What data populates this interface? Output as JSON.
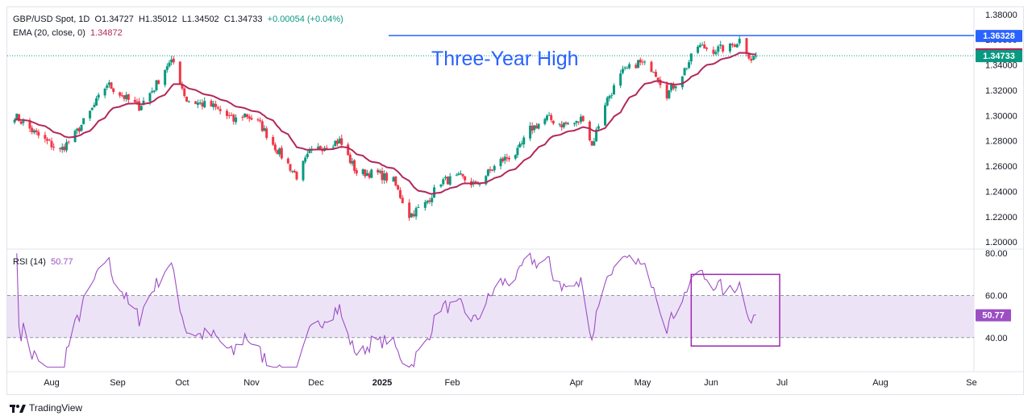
{
  "header": {
    "symbol": "GBP/USD Spot, 1D",
    "open": "O1.34727",
    "high": "H1.35012",
    "low": "L1.34502",
    "close": "C1.34733",
    "change": "+0.00054 (+0.04%)",
    "ema_label": "EMA (20, close, 0)",
    "ema_value": "1.34872"
  },
  "rsi": {
    "label": "RSI (14)",
    "value": "50.77"
  },
  "annotation": "Three-Year High",
  "footer": {
    "brand": "TradingView"
  },
  "colors": {
    "up": "#089981",
    "down": "#f23645",
    "ema": "#b2285a",
    "rsi": "#9c4fc4",
    "resistance": "#2962ff",
    "box": "#9c27b0",
    "band": "#ede3f7"
  },
  "chart_data": [
    {
      "type": "candlestick",
      "title": "GBP/USD Spot, 1D",
      "x": [
        "Jul",
        "Aug",
        "Sep",
        "Oct",
        "Nov",
        "Dec",
        "2025",
        "Feb",
        "Mar",
        "Apr",
        "May",
        "Jun",
        "Jul",
        "Aug",
        "Sep"
      ],
      "x_ticks": [
        "Aug",
        "Sep",
        "Oct",
        "Nov",
        "Dec",
        "2025",
        "Feb",
        "Apr",
        "May",
        "Jun",
        "Jul",
        "Aug",
        "Se"
      ],
      "y_ticks": [
        "1.38000",
        "1.36000",
        "1.34000",
        "1.32000",
        "1.30000",
        "1.28000",
        "1.26000",
        "1.24000",
        "1.22000",
        "1.20000"
      ],
      "ylim": [
        1.195,
        1.385
      ],
      "close_anchors": [
        [
          "2024-07-15",
          1.3
        ],
        [
          "2024-07-25",
          1.285
        ],
        [
          "2024-08-05",
          1.272
        ],
        [
          "2024-08-12",
          1.285
        ],
        [
          "2024-08-20",
          1.305
        ],
        [
          "2024-08-27",
          1.325
        ],
        [
          "2024-09-06",
          1.312
        ],
        [
          "2024-09-11",
          1.307
        ],
        [
          "2024-09-18",
          1.322
        ],
        [
          "2024-09-24",
          1.34
        ],
        [
          "2024-09-27",
          1.342
        ],
        [
          "2024-10-03",
          1.312
        ],
        [
          "2024-10-15",
          1.307
        ],
        [
          "2024-10-24",
          1.296
        ],
        [
          "2024-10-29",
          1.301
        ],
        [
          "2024-11-05",
          1.293
        ],
        [
          "2024-11-12",
          1.275
        ],
        [
          "2024-11-22",
          1.252
        ],
        [
          "2024-11-28",
          1.27
        ],
        [
          "2024-12-06",
          1.277
        ],
        [
          "2024-12-12",
          1.28
        ],
        [
          "2024-12-20",
          1.255
        ],
        [
          "2024-12-30",
          1.254
        ],
        [
          "2025-01-06",
          1.248
        ],
        [
          "2025-01-13",
          1.221
        ],
        [
          "2025-01-20",
          1.23
        ],
        [
          "2025-01-27",
          1.248
        ],
        [
          "2025-02-05",
          1.251
        ],
        [
          "2025-02-12",
          1.245
        ],
        [
          "2025-02-24",
          1.264
        ],
        [
          "2025-03-04",
          1.271
        ],
        [
          "2025-03-10",
          1.289
        ],
        [
          "2025-03-18",
          1.298
        ],
        [
          "2025-03-25",
          1.293
        ],
        [
          "2025-04-01",
          1.294
        ],
        [
          "2025-04-04",
          1.299
        ],
        [
          "2025-04-08",
          1.276
        ],
        [
          "2025-04-14",
          1.31
        ],
        [
          "2025-04-22",
          1.334
        ],
        [
          "2025-04-29",
          1.342
        ],
        [
          "2025-05-06",
          1.337
        ],
        [
          "2025-05-12",
          1.317
        ],
        [
          "2025-05-18",
          1.33
        ],
        [
          "2025-05-26",
          1.355
        ],
        [
          "2025-06-02",
          1.352
        ],
        [
          "2025-06-09",
          1.354
        ],
        [
          "2025-06-13",
          1.36
        ],
        [
          "2025-06-18",
          1.345
        ],
        [
          "2025-06-20",
          1.3473
        ]
      ],
      "ema_period": 20,
      "horizontal_lines": [
        1.36328
      ],
      "last_values": {
        "resistance": "1.36328",
        "ema": "1.34872",
        "close": "1.34733"
      }
    },
    {
      "type": "line",
      "title": "RSI (14)",
      "y_ticks": [
        "80.00",
        "60.00",
        "40.00"
      ],
      "ylim": [
        25,
        82
      ],
      "band": [
        40,
        60
      ],
      "last_value": "50.77",
      "highlight_box": {
        "x": [
          "2025-05-23",
          "2025-06-30"
        ],
        "y": [
          36,
          70
        ]
      }
    }
  ]
}
